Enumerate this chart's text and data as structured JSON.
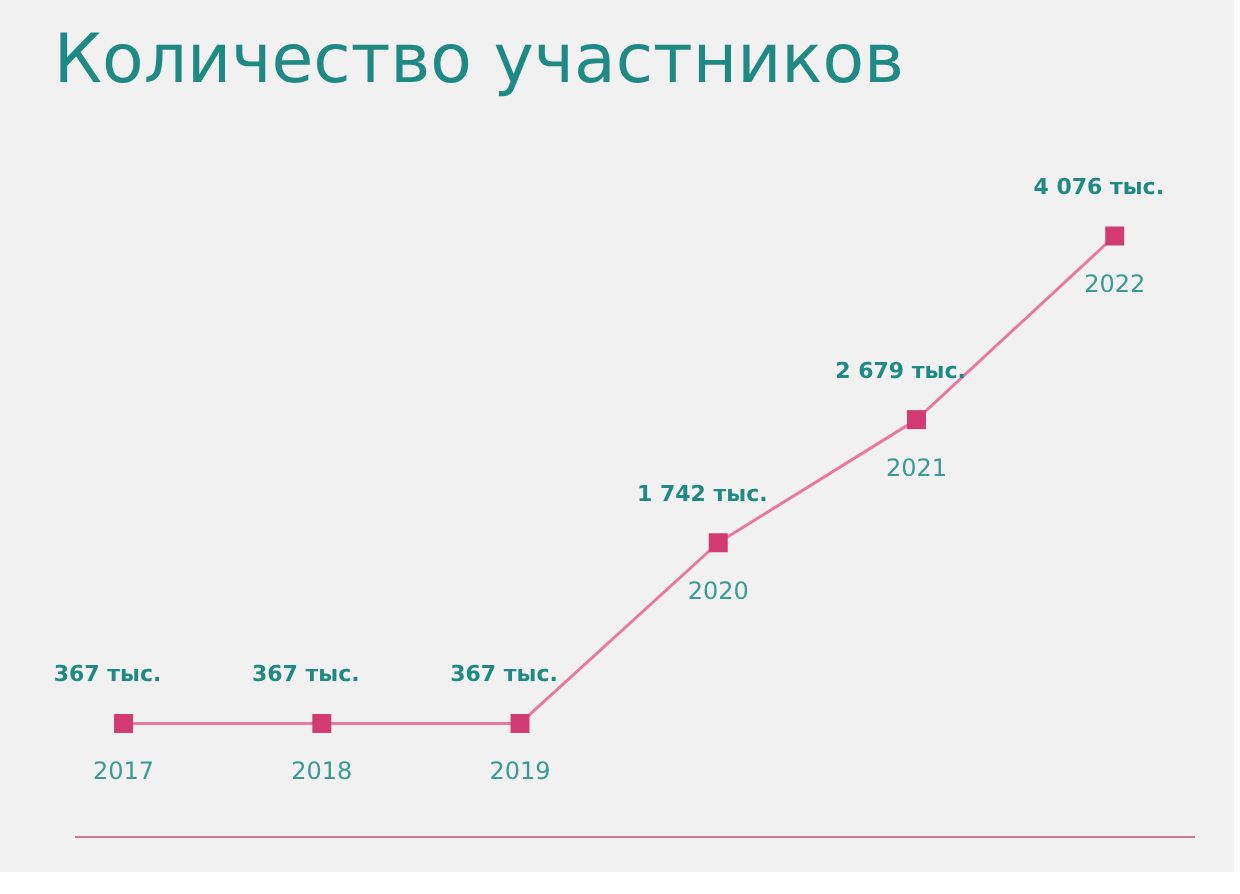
{
  "chart_data": {
    "type": "line",
    "title": "Количество участников",
    "categories": [
      "2017",
      "2018",
      "2019",
      "2020",
      "2021",
      "2022"
    ],
    "values": [
      367,
      367,
      367,
      1742,
      2679,
      4076
    ],
    "value_labels": [
      "367 тыс.",
      "367 тыс.",
      "367 тыс.",
      "1 742 тыс.",
      "2 679 тыс.",
      "4 076 тыс."
    ],
    "color": "#e8789e",
    "marker": "square"
  }
}
